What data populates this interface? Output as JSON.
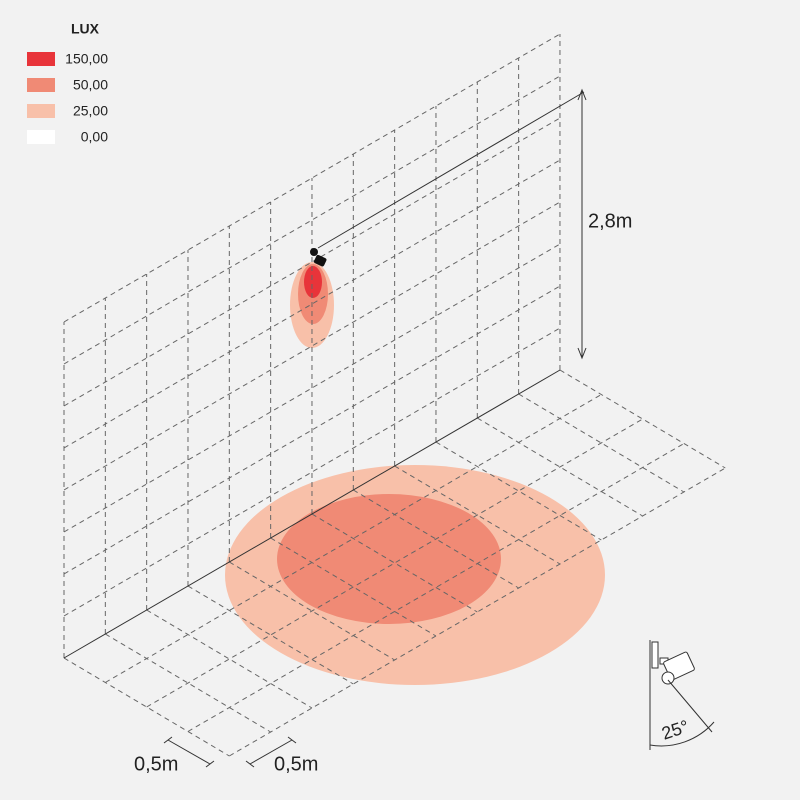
{
  "legend": {
    "title": "LUX",
    "items": [
      {
        "label": "150,00",
        "color": "#e8343a"
      },
      {
        "label": "50,00",
        "color": "#f08a75"
      },
      {
        "label": "25,00",
        "color": "#f8c0a9"
      },
      {
        "label": "0,00",
        "color": "#ffffff"
      }
    ]
  },
  "dimensions": {
    "height": "2,8m",
    "grid_depth": "0,5m",
    "grid_width": "0,5m",
    "tilt": "25°"
  }
}
